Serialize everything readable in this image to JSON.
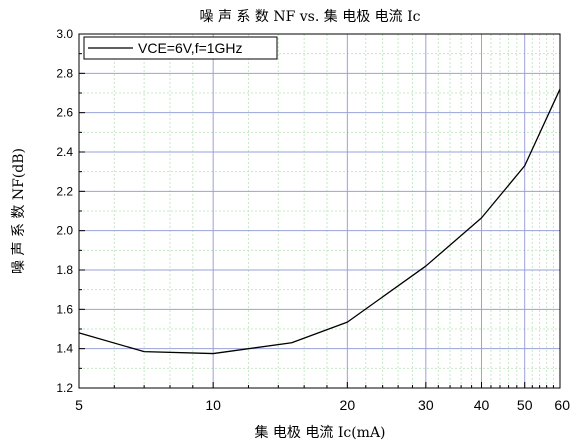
{
  "chart_data": {
    "type": "line",
    "title": "噪 声 系 数 NF vs. 集 电极  电流 Ic",
    "xlabel": "集 电极  电流 Ic(mA)",
    "ylabel": "噪 声 系 数  NF(dB)",
    "x_scale": "log",
    "xlim": [
      5,
      60
    ],
    "ylim": [
      1.2,
      3.0
    ],
    "x_ticks": [
      5,
      10,
      20,
      30,
      40,
      50,
      60
    ],
    "x_tick_labels": [
      "5",
      "10",
      "20",
      "30",
      "40",
      "50",
      "60"
    ],
    "y_ticks": [
      1.2,
      1.4,
      1.6,
      1.8,
      2.0,
      2.2,
      2.4,
      2.6,
      2.8,
      3.0
    ],
    "y_tick_labels": [
      "1.2",
      "1.4",
      "1.6",
      "1.8",
      "2.0",
      "2.2",
      "2.4",
      "2.6",
      "2.8",
      "3.0"
    ],
    "grid": true,
    "legend_position": "top-left",
    "series": [
      {
        "name": "VCE=6V,f=1GHz",
        "color": "#000000",
        "x": [
          5,
          7,
          10,
          15,
          20,
          30,
          40,
          50,
          60
        ],
        "y": [
          1.48,
          1.385,
          1.375,
          1.43,
          1.535,
          1.82,
          2.065,
          2.33,
          2.72
        ]
      }
    ]
  },
  "colors": {
    "grid_major": "#9aa2d8",
    "grid_minor": "#c6e8c6",
    "line": "#000000"
  }
}
